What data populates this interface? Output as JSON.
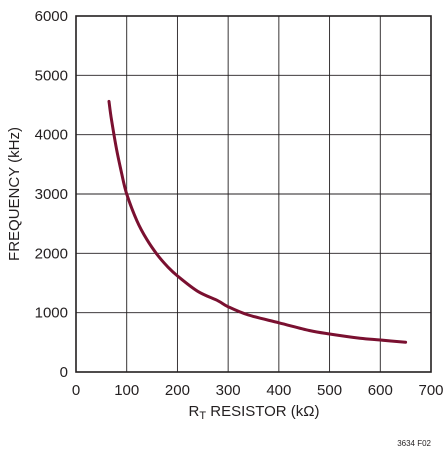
{
  "chart_data": {
    "type": "line",
    "title": "",
    "xlabel_main": "R",
    "xlabel_sub": "T",
    "xlabel_rest": " RESISTOR (kΩ)",
    "ylabel": "FREQUENCY (kHz)",
    "xlim": [
      0,
      700
    ],
    "ylim": [
      0,
      6000
    ],
    "x_ticks": [
      0,
      100,
      200,
      300,
      400,
      500,
      600,
      700
    ],
    "y_ticks": [
      0,
      1000,
      2000,
      3000,
      4000,
      5000,
      6000
    ],
    "grid": true,
    "legend": "none",
    "line_color": "#7a1030",
    "grid_color": "#231f20",
    "series": [
      {
        "x": [
          65,
          70,
          80,
          90,
          100,
          120,
          140,
          160,
          180,
          200,
          240,
          280,
          300,
          340,
          400,
          460,
          500,
          560,
          600,
          650
        ],
        "values": [
          4560,
          4250,
          3750,
          3350,
          3000,
          2550,
          2230,
          1980,
          1780,
          1620,
          1360,
          1200,
          1100,
          960,
          830,
          700,
          640,
          570,
          540,
          500
        ]
      }
    ],
    "figure_id": "3634 F02"
  }
}
